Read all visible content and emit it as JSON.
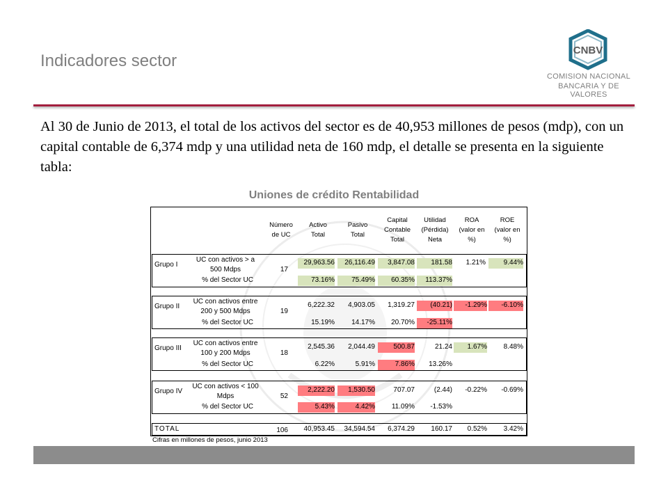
{
  "slide": {
    "title": "Indicadores sector",
    "body": "Al 30 de Junio de 2013, el total de los activos del sector es de 40,953 millones de pesos (mdp), con un capital contable de 6,374 mdp y una utilidad neta de 160 mdp, el detalle se presenta en la siguiente tabla:",
    "table_title": "Uniones de crédito Rentabilidad",
    "note": "Cifras en millones de pesos, junio 2013"
  },
  "logo": {
    "abbr": "CNBV",
    "line1": "COMISION NACIONAL",
    "line2": "BANCARIA Y DE VALORES"
  },
  "colors": {
    "accent": "#a31f3e",
    "green": "#d8e4bc",
    "red": "#ff7c80",
    "bar": "#8c8c8c"
  },
  "table": {
    "headers": {
      "num_uc": [
        "Número",
        "de UC"
      ],
      "activo": [
        "Activo",
        "Total"
      ],
      "pasivo": [
        "Pasivo",
        "Total"
      ],
      "capital": [
        "Capital",
        "Contable",
        "Total"
      ],
      "utilidad": [
        "Utilidad",
        "(Pérdida)",
        "Neta"
      ],
      "roa": [
        "ROA",
        "(valor en",
        "%)"
      ],
      "roe": [
        "ROE",
        "(valor en",
        "%)"
      ]
    },
    "groups": [
      {
        "name": "Grupo I",
        "desc": [
          "UC con activos > a",
          "500 Mdps"
        ],
        "num_uc": "17",
        "activo": "29,963.56",
        "pasivo": "26,116.49",
        "capital": "3,847.08",
        "utilidad": "181.58",
        "roa": "1.21%",
        "roe": "9.44%",
        "pct_label": "% del Sector UC",
        "pct": {
          "activo": "73.16%",
          "pasivo": "75.49%",
          "capital": "60.35%",
          "utilidad": "113.37%"
        }
      },
      {
        "name": "Grupo II",
        "desc": [
          "UC con activos entre",
          "200 y 500 Mdps"
        ],
        "num_uc": "19",
        "activo": "6,222.32",
        "pasivo": "4,903.05",
        "capital": "1,319.27",
        "utilidad": "(40.21)",
        "roa": "-1.29%",
        "roe": "-6.10%",
        "pct_label": "% del Sector UC",
        "pct": {
          "activo": "15.19%",
          "pasivo": "14.17%",
          "capital": "20.70%",
          "utilidad": "-25.11%"
        }
      },
      {
        "name": "Grupo III",
        "desc": [
          "UC con activos entre",
          "100 y 200 Mdps"
        ],
        "num_uc": "18",
        "activo": "2,545.36",
        "pasivo": "2,044.49",
        "capital": "500.87",
        "utilidad": "21.24",
        "roa": "1.67%",
        "roe": "8.48%",
        "pct_label": "% del Sector UC",
        "pct": {
          "activo": "6.22%",
          "pasivo": "5.91%",
          "capital": "7.86%",
          "utilidad": "13.26%"
        }
      },
      {
        "name": "Grupo IV",
        "desc": [
          "UC con activos < 100",
          "Mdps"
        ],
        "num_uc": "52",
        "activo": "2,222.20",
        "pasivo": "1,530.50",
        "capital": "707.07",
        "utilidad": "(2.44)",
        "roa": "-0.22%",
        "roe": "-0.69%",
        "pct_label": "% del Sector UC",
        "pct": {
          "activo": "5.43%",
          "pasivo": "4.42%",
          "capital": "11.09%",
          "utilidad": "-1.53%"
        }
      }
    ],
    "total": {
      "label": "TOTAL",
      "num_uc": "106",
      "activo": "40,953.45",
      "pasivo": "34,594.54",
      "capital": "6,374.29",
      "utilidad": "160.17",
      "roa": "0.52%",
      "roe": "3.42%"
    }
  }
}
